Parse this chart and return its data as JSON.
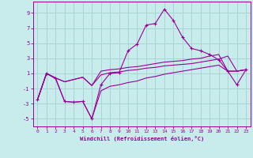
{
  "background_color": "#c8ecec",
  "grid_color": "#aad4d4",
  "line_color": "#990099",
  "xlim": [
    -0.5,
    23.5
  ],
  "ylim": [
    -6.0,
    10.5
  ],
  "xticks": [
    0,
    1,
    2,
    3,
    4,
    5,
    6,
    7,
    8,
    9,
    10,
    11,
    12,
    13,
    14,
    15,
    16,
    17,
    18,
    19,
    20,
    21,
    22,
    23
  ],
  "yticks": [
    -5,
    -3,
    -1,
    1,
    3,
    5,
    7,
    9
  ],
  "xlabel": "Windchill (Refroidissement éolien,°C)",
  "lines": [
    {
      "x": [
        0,
        1,
        2,
        3,
        4,
        5,
        6,
        7,
        8,
        9,
        10,
        11,
        12,
        13,
        14,
        15,
        16,
        17,
        18,
        19,
        20,
        21,
        22,
        23
      ],
      "y": [
        -2.5,
        1.0,
        0.4,
        -2.7,
        -2.8,
        -2.7,
        -5.0,
        -0.5,
        1.0,
        1.1,
        4.0,
        4.9,
        7.4,
        7.6,
        9.5,
        8.0,
        5.8,
        4.3,
        4.0,
        3.5,
        2.8,
        1.3,
        -0.5,
        1.5
      ],
      "marker": "+"
    },
    {
      "x": [
        0,
        1,
        2,
        3,
        4,
        5,
        6,
        7,
        8,
        9,
        10,
        11,
        12,
        13,
        14,
        15,
        16,
        17,
        18,
        19,
        20,
        21,
        22,
        23
      ],
      "y": [
        -2.5,
        1.0,
        0.4,
        -0.1,
        0.2,
        0.5,
        -0.6,
        0.8,
        1.1,
        1.2,
        1.4,
        1.5,
        1.7,
        1.8,
        2.0,
        2.1,
        2.2,
        2.3,
        2.5,
        2.7,
        2.9,
        3.3,
        1.3,
        1.5
      ],
      "marker": null
    },
    {
      "x": [
        0,
        1,
        2,
        3,
        4,
        5,
        6,
        7,
        8,
        9,
        10,
        11,
        12,
        13,
        14,
        15,
        16,
        17,
        18,
        19,
        20,
        21,
        22,
        23
      ],
      "y": [
        -2.5,
        1.0,
        0.4,
        -0.1,
        0.2,
        0.5,
        -0.6,
        1.3,
        1.5,
        1.6,
        1.8,
        1.9,
        2.1,
        2.3,
        2.5,
        2.6,
        2.7,
        2.9,
        3.0,
        3.3,
        3.5,
        1.3,
        1.3,
        1.5
      ],
      "marker": null
    },
    {
      "x": [
        0,
        1,
        2,
        3,
        4,
        5,
        6,
        7,
        8,
        9,
        10,
        11,
        12,
        13,
        14,
        15,
        16,
        17,
        18,
        19,
        20,
        21,
        22,
        23
      ],
      "y": [
        -2.5,
        1.0,
        0.3,
        -2.7,
        -2.8,
        -2.7,
        -5.0,
        -1.3,
        -0.7,
        -0.5,
        -0.2,
        0.0,
        0.4,
        0.6,
        0.9,
        1.1,
        1.3,
        1.5,
        1.7,
        1.9,
        2.1,
        1.3,
        1.3,
        1.5
      ],
      "marker": null
    }
  ]
}
